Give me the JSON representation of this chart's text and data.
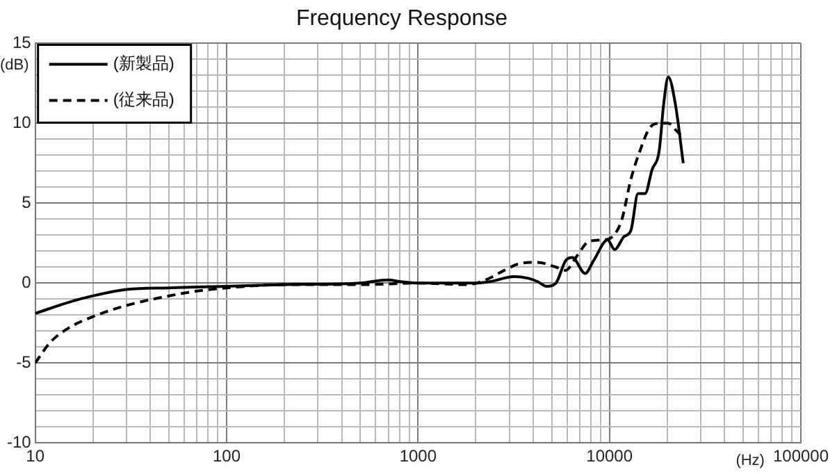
{
  "chart_data": {
    "type": "line",
    "title": "Frequency Response",
    "xlabel": "(Hz)",
    "ylabel": "(dB)",
    "xlim": [
      10,
      100000
    ],
    "xticks": [
      10,
      {
        "value": 20,
        "label": null
      },
      {
        "value": 30,
        "label": null
      },
      {
        "value": 40,
        "label": null
      },
      {
        "value": 50,
        "label": null
      },
      {
        "value": 60,
        "label": null
      },
      {
        "value": 70,
        "label": null
      },
      {
        "value": 80,
        "label": null
      },
      {
        "value": 90,
        "label": null
      },
      100,
      {
        "value": 200,
        "label": null
      },
      {
        "value": 300,
        "label": null
      },
      {
        "value": 400,
        "label": null
      },
      {
        "value": 500,
        "label": null
      },
      {
        "value": 600,
        "label": null
      },
      {
        "value": 700,
        "label": null
      },
      {
        "value": 800,
        "label": null
      },
      {
        "value": 900,
        "label": null
      },
      1000,
      {
        "value": 2000,
        "label": null
      },
      {
        "value": 3000,
        "label": null
      },
      {
        "value": 4000,
        "label": null
      },
      {
        "value": 5000,
        "label": null
      },
      {
        "value": 6000,
        "label": null
      },
      {
        "value": 7000,
        "label": null
      },
      {
        "value": 8000,
        "label": null
      },
      {
        "value": 9000,
        "label": null
      },
      10000,
      {
        "value": 20000,
        "label": null
      },
      {
        "value": 30000,
        "label": null
      },
      {
        "value": 40000,
        "label": null
      },
      {
        "value": 50000,
        "label": null
      },
      {
        "value": 60000,
        "label": null
      },
      {
        "value": 70000,
        "label": null
      },
      {
        "value": 80000,
        "label": null
      },
      {
        "value": 90000,
        "label": null
      },
      100000
    ],
    "ylim": [
      -10,
      15
    ],
    "yticks": [
      -10,
      {
        "value": -9,
        "label": null
      },
      {
        "value": -8,
        "label": null
      },
      {
        "value": -7,
        "label": null
      },
      {
        "value": -6,
        "label": null
      },
      -5,
      {
        "value": -4,
        "label": null
      },
      {
        "value": -3,
        "label": null
      },
      {
        "value": -2,
        "label": null
      },
      {
        "value": -1,
        "label": null
      },
      0,
      {
        "value": 1,
        "label": null
      },
      {
        "value": 2,
        "label": null
      },
      {
        "value": 3,
        "label": null
      },
      {
        "value": 4,
        "label": null
      },
      5,
      {
        "value": 6,
        "label": null
      },
      {
        "value": 7,
        "label": null
      },
      {
        "value": 8,
        "label": null
      },
      {
        "value": 9,
        "label": null
      },
      10,
      {
        "value": 11,
        "label": null
      },
      {
        "value": 12,
        "label": null
      },
      {
        "value": 13,
        "label": null
      },
      {
        "value": 14,
        "label": null
      },
      15
    ],
    "grid": true,
    "log": "x",
    "legend": "top left",
    "marker": "none",
    "series": [
      {
        "name": "(新製品)",
        "color": "#000000",
        "line_style": "solid",
        "x": [
          10,
          15,
          20,
          30,
          50,
          100,
          200,
          500,
          700,
          800,
          1000,
          2000,
          2390,
          3170,
          3760,
          4200,
          4700,
          5250,
          5900,
          6400,
          7470,
          8260,
          9780,
          10640,
          11900,
          12950,
          14100,
          15350,
          16700,
          18200,
          19200,
          20300,
          22100,
          24300
        ],
        "values": [
          -1.9,
          -1.2,
          -0.8,
          -0.4,
          -0.3,
          -0.2,
          -0.1,
          0,
          0.2,
          0.1,
          0,
          0,
          0.1,
          0.4,
          0.3,
          0.1,
          -0.2,
          0,
          1.4,
          1.6,
          0.6,
          1.4,
          2.7,
          2.1,
          2.9,
          3.3,
          5.6,
          5.6,
          7.1,
          8.3,
          11.2,
          12.9,
          11.2,
          7.5
        ]
      },
      {
        "name": "(従来品)",
        "color": "#000000",
        "line_style": "dashed",
        "x": [
          10,
          12,
          15,
          20,
          30,
          50,
          70,
          100,
          200,
          500,
          1000,
          1800,
          2260,
          2830,
          3350,
          4200,
          5250,
          5900,
          6770,
          7800,
          9240,
          10350,
          11560,
          12950,
          14460,
          16200,
          18200,
          20300,
          22100,
          24300
        ],
        "values": [
          -5,
          -3.7,
          -2.8,
          -2.1,
          -1.4,
          -0.8,
          -0.5,
          -0.3,
          -0.1,
          -0.1,
          0,
          -0.1,
          0.2,
          0.8,
          1.2,
          1.3,
          1,
          0.8,
          1.7,
          2.6,
          2.7,
          2.9,
          3.9,
          6.5,
          8.3,
          9.7,
          10,
          10,
          9.6,
          9.1
        ]
      }
    ]
  }
}
